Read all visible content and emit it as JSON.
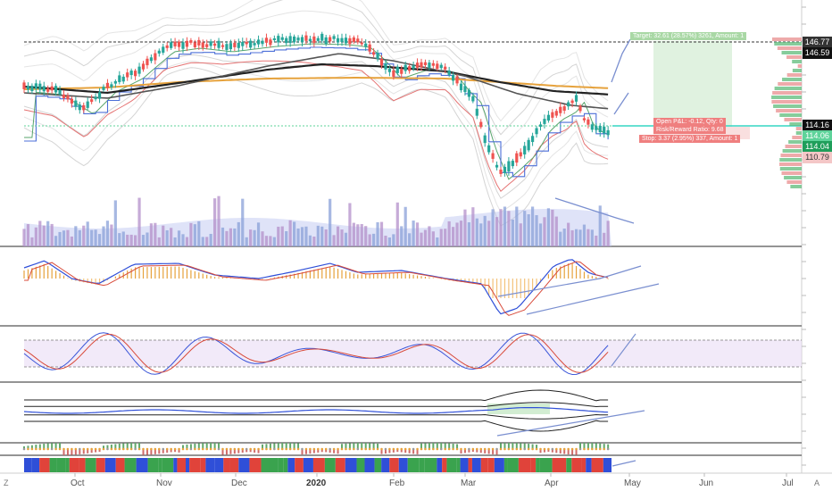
{
  "chart_data": {
    "type": "candlestick",
    "x_axis_labels": [
      "Oct",
      "Nov",
      "Dec",
      "2020",
      "Feb",
      "Mar",
      "Apr",
      "May",
      "Jun",
      "Jul"
    ],
    "price_labels": [
      {
        "value": "146.77",
        "style": "dark"
      },
      {
        "value": "146.59",
        "style": "black"
      },
      {
        "value": "114.16",
        "style": "black"
      },
      {
        "value": "114.06",
        "style": "green"
      },
      {
        "value": "114.04",
        "style": "green"
      },
      {
        "value": "110.79",
        "style": "red"
      }
    ],
    "annotations": {
      "target": "Target: 32.61 (28.57%) 3261, Amount: 1",
      "open_pnl": "Open P&L: -0.12, Qty: 0",
      "risk_reward": "Risk/Reward Ratio: 9.68",
      "stop": "Stop: 3.37 (2.95%) 337, Amount: 1"
    },
    "corner_left": "Z",
    "corner_right": "A",
    "colors": {
      "up": "#26a69a",
      "down": "#ef5350",
      "ma_black": "#222222",
      "ma_orange": "#e6a23c",
      "ma_blue": "#4c6fd8",
      "trendline": "#7a8fd0",
      "target_zone": "#d8efd8",
      "stop_zone": "#f8dcdc"
    }
  }
}
